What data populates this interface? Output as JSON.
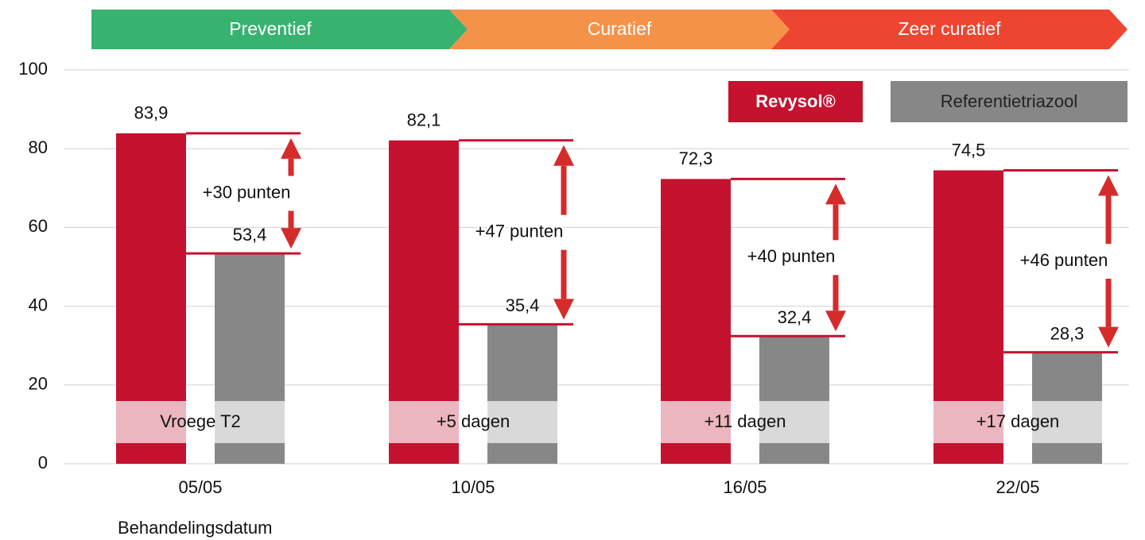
{
  "chart_data": {
    "type": "bar",
    "phases": [
      "Preventief",
      "Curatief",
      "Zeer curatief"
    ],
    "phase_colors": [
      "#37b36f",
      "#f5924a",
      "#ee4530"
    ],
    "categories": [
      "05/05",
      "10/05",
      "16/05",
      "22/05"
    ],
    "x_label": "Behandelingsdatum",
    "series": [
      {
        "name": "Revysol®",
        "color": "#c4122f",
        "values": [
          83.9,
          82.1,
          72.3,
          74.5
        ],
        "value_labels": [
          "83,9",
          "82,1",
          "72,3",
          "74,5"
        ]
      },
      {
        "name": "Referentietriazool",
        "color": "#878787",
        "values": [
          53.4,
          35.4,
          32.4,
          28.3
        ],
        "value_labels": [
          "53,4",
          "35,4",
          "32,4",
          "28,3"
        ]
      }
    ],
    "difference_labels": [
      "+30 punten",
      "+47 punten",
      "+40 punten",
      "+46 punten"
    ],
    "timing_labels": [
      "Vroege T2",
      "+5 dagen",
      "+11 dagen",
      "+17 dagen"
    ],
    "ylim": [
      0,
      100
    ],
    "yticks": [
      0,
      20,
      40,
      60,
      80,
      100
    ],
    "grid": true,
    "legend": "top-right"
  }
}
